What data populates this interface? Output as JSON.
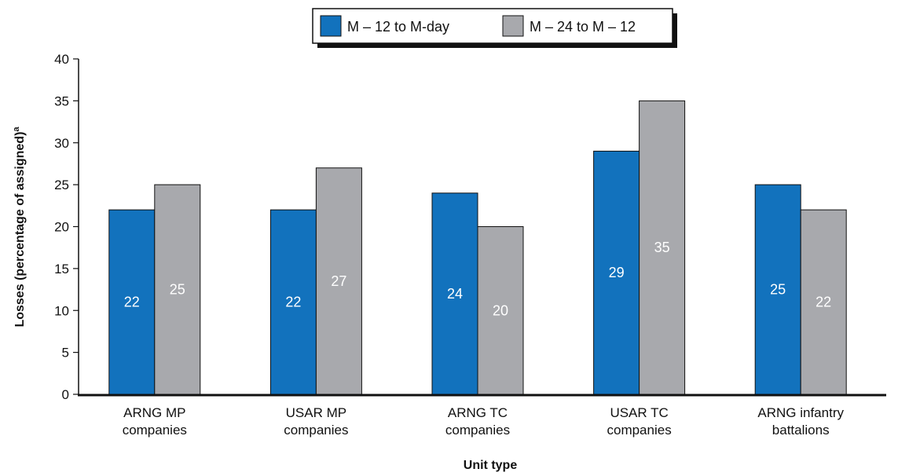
{
  "chart_data": {
    "type": "bar",
    "categories": [
      [
        "ARNG MP",
        "companies"
      ],
      [
        "USAR MP",
        "companies"
      ],
      [
        "ARNG TC",
        "companies"
      ],
      [
        "USAR TC",
        "companies"
      ],
      [
        "ARNG infantry",
        "battalions"
      ]
    ],
    "series": [
      {
        "name": "M – 12 to M-day",
        "values": [
          22,
          22,
          24,
          29,
          25
        ],
        "color": "#1272bd"
      },
      {
        "name": "M – 24 to M – 12",
        "values": [
          25,
          27,
          20,
          35,
          22
        ],
        "color": "#a8a9ad"
      }
    ],
    "xlabel": "Unit type",
    "ylabel": "Losses (percentage of assigned)",
    "ylabel_superscript": "a",
    "ylim": [
      0,
      40
    ],
    "yticks": [
      0,
      5,
      10,
      15,
      20,
      25,
      30,
      35,
      40
    ],
    "grid": false,
    "legend_position": "top-center"
  }
}
